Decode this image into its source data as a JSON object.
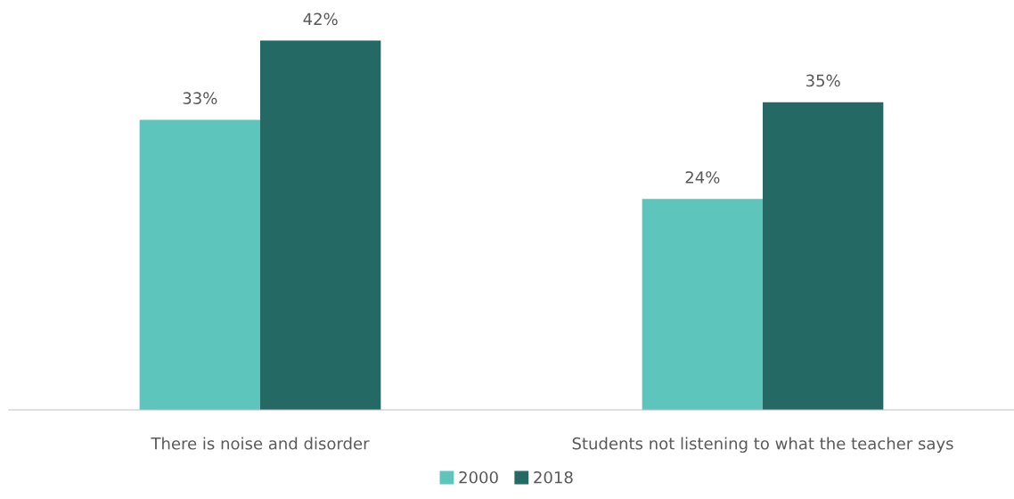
{
  "chart_data": {
    "type": "bar",
    "categories": [
      "There is noise and disorder",
      "Students not listening to what the teacher says"
    ],
    "series": [
      {
        "name": "2000",
        "color": "#5ec5bd",
        "values": [
          33,
          24
        ],
        "value_labels": [
          "33%",
          "24%"
        ]
      },
      {
        "name": "2018",
        "color": "#246963",
        "values": [
          42,
          35
        ],
        "value_labels": [
          "42%",
          "35%"
        ]
      }
    ],
    "legend": "bottom",
    "grid": false
  }
}
